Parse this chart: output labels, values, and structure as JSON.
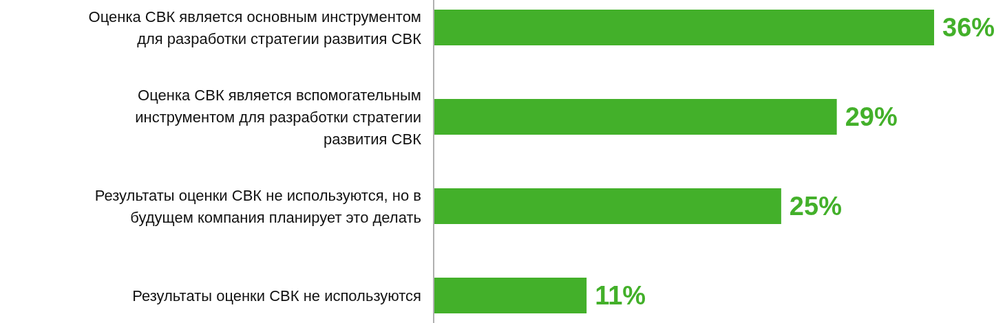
{
  "chart_data": {
    "type": "bar",
    "orientation": "horizontal",
    "categories": [
      "Оценка СВК является основным инструментом для разработки стратегии развития СВК",
      "Оценка СВК является вспомогательным инструментом для разработки стратегии развития СВК",
      "Результаты оценки СВК не используются, но в будущем компания планирует это делать",
      "Результаты оценки СВК не используются"
    ],
    "values": [
      36,
      29,
      25,
      11
    ],
    "color": "#43b02a",
    "data_labels": true,
    "value_labels": [
      "36%",
      "29%",
      "25%",
      "11%"
    ]
  }
}
